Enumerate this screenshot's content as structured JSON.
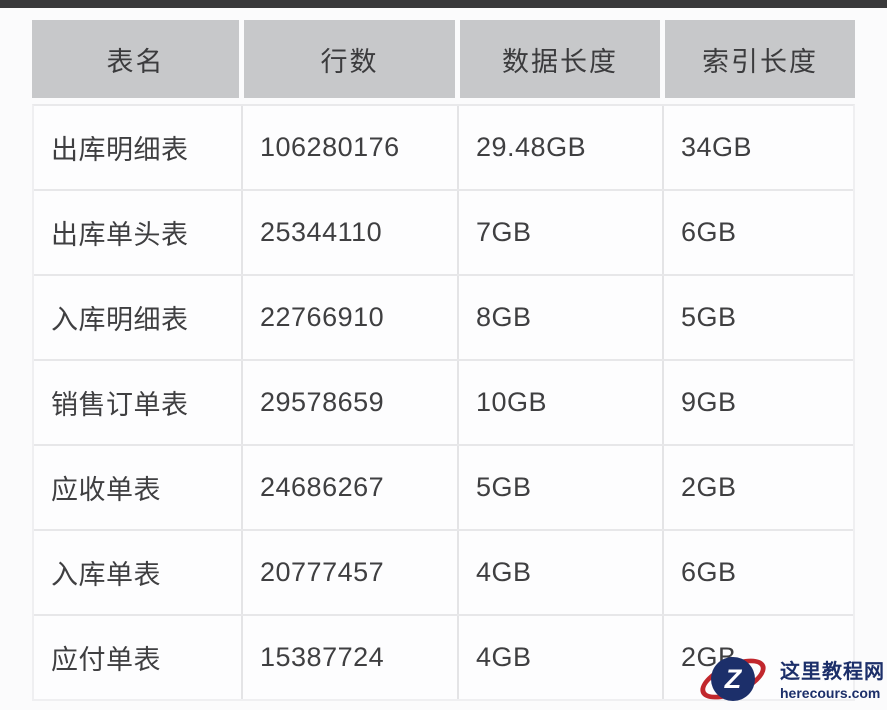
{
  "chart_data": {
    "type": "table",
    "columns": [
      "表名",
      "行数",
      "数据长度",
      "索引长度"
    ],
    "rows": [
      [
        "出库明细表",
        "106280176",
        "29.48GB",
        "34GB"
      ],
      [
        "出库单头表",
        "25344110",
        "7GB",
        "6GB"
      ],
      [
        "入库明细表",
        "22766910",
        "8GB",
        "5GB"
      ],
      [
        "销售订单表",
        "29578659",
        "10GB",
        "9GB"
      ],
      [
        "应收单表",
        "24686267",
        "5GB",
        "2GB"
      ],
      [
        "入库单表",
        "20777457",
        "4GB",
        "6GB"
      ],
      [
        "应付单表",
        "15387724",
        "4GB",
        "2GB"
      ]
    ],
    "layout": {
      "header_background": "#c7c8ca",
      "grid": true,
      "legend": "none"
    }
  },
  "watermark": {
    "site_name": "这里教程网",
    "site_url": "herecours.com",
    "logo_letter": "Z",
    "colors": {
      "navy": "#1c2f6a",
      "red": "#c1272d"
    }
  },
  "colors": {
    "header_bg": "#c7c8ca",
    "body_text": "#3f3f41",
    "row_border": "#e7e7e9",
    "top_bar": "#39393b"
  }
}
